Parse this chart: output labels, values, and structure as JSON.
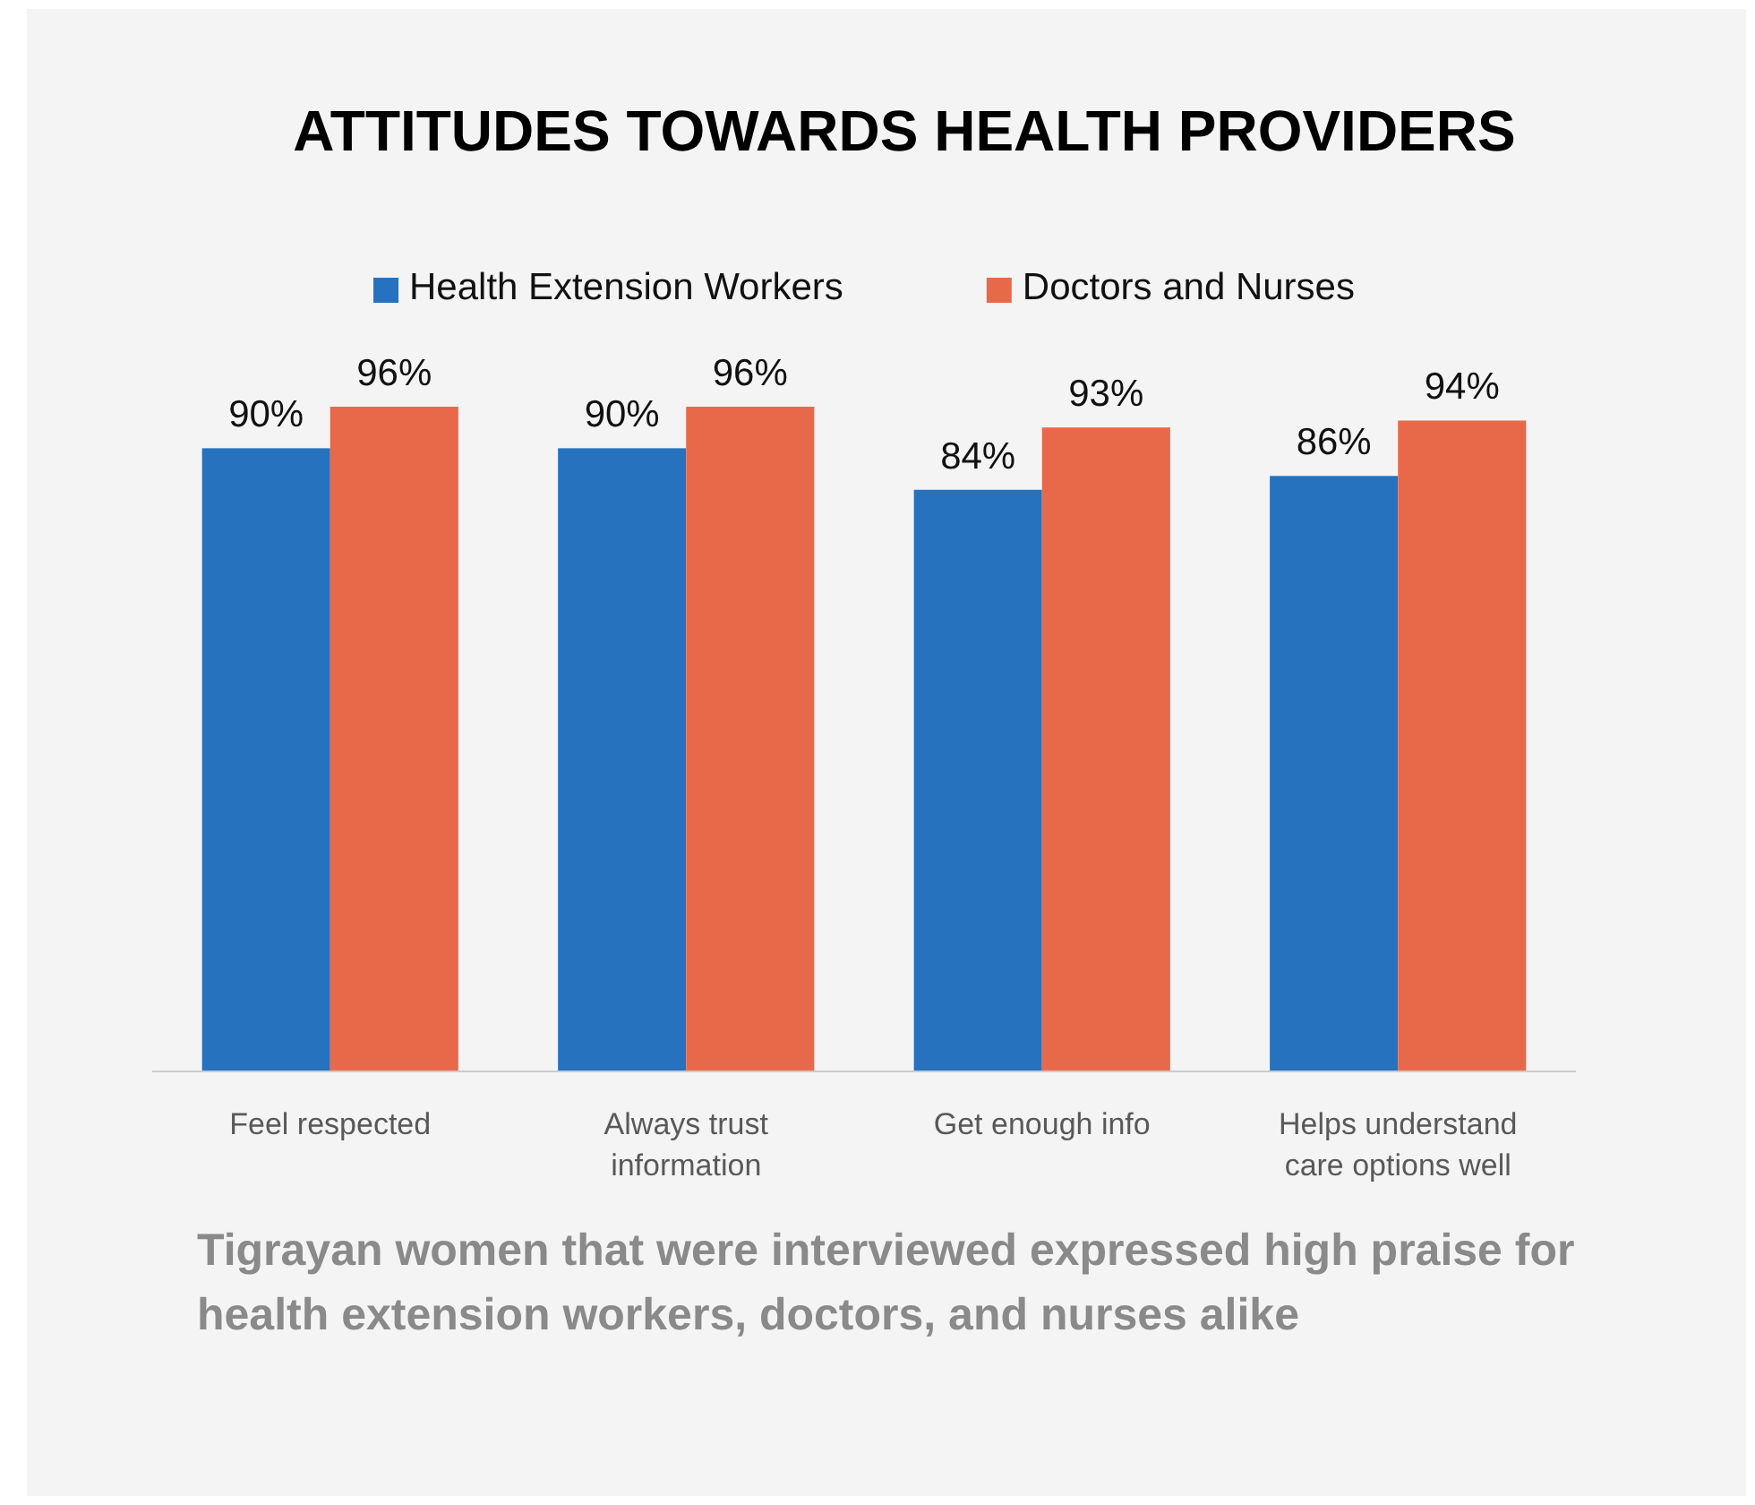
{
  "chart_data": {
    "type": "bar",
    "title": "ATTITUDES TOWARDS HEALTH PROVIDERS",
    "categories": [
      "Feel respected",
      "Always trust information",
      "Get enough info",
      "Helps understand care options well"
    ],
    "series": [
      {
        "name": "Health Extension Workers",
        "color": "#2672be",
        "values": [
          90,
          90,
          84,
          86
        ],
        "value_labels": [
          "90%",
          "90%",
          "84%",
          "86%"
        ]
      },
      {
        "name": "Doctors and Nurses",
        "color": "#e8694a",
        "values": [
          96,
          96,
          93,
          94
        ],
        "value_labels": [
          "96%",
          "96%",
          "93%",
          "94%"
        ]
      }
    ],
    "legend": "top",
    "annotations": [
      "Tigrayan women that were interviewed expressed high praise for health extension workers, doctors, and nurses alike"
    ]
  }
}
